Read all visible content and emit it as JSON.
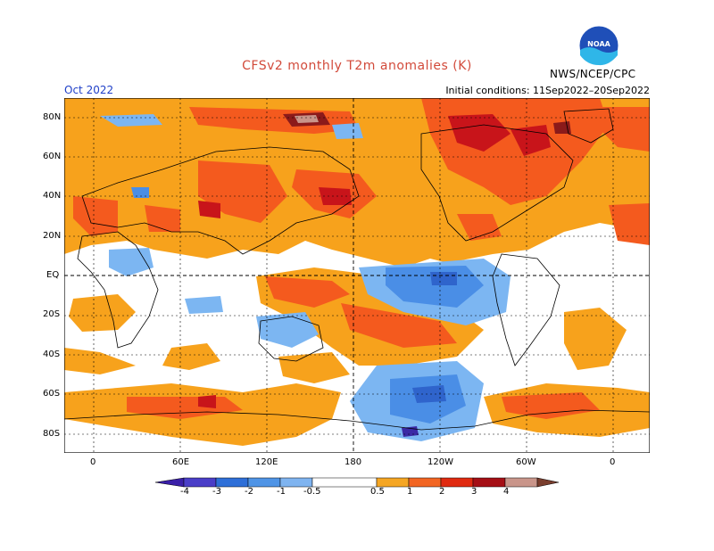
{
  "title": "CFSv2 monthly T2m anomalies (K)",
  "month": "Oct 2022",
  "initial_conditions": "Initial conditions: 11Sep2022–20Sep2022",
  "agency": "NWS/NCEP/CPC",
  "logo_text": "NOAA",
  "lat_labels": [
    "80N",
    "60N",
    "40N",
    "20N",
    "EQ",
    "20S",
    "40S",
    "60S",
    "80S"
  ],
  "lon_labels": [
    "0",
    "60E",
    "120E",
    "180",
    "120W",
    "60W",
    "0"
  ],
  "legend": {
    "labels": [
      "-4",
      "-3",
      "-2",
      "-1",
      "-0.5",
      "0.5",
      "1",
      "2",
      "3",
      "4"
    ],
    "colors": [
      "#3a1fa8",
      "#4a3ec8",
      "#2e6fd8",
      "#4f94e6",
      "#7fb4f0",
      "#ffffff",
      "#f5a623",
      "#f26522",
      "#e02a10",
      "#a50f15",
      "#c9958a",
      "#7a3e2e"
    ]
  },
  "anomaly_colors": {
    "warm_05_1": "#f7a21c",
    "warm_1_2": "#f45a1e",
    "warm_2_3": "#c8141a",
    "warm_3_4": "#8b1a1a",
    "warm_4p": "#c9958a",
    "cold_05_1": "#7cb6f2",
    "cold_1_2": "#4a8ee6",
    "cold_2_3": "#2f64cc",
    "cold_3_4": "#3b2aa5"
  }
}
